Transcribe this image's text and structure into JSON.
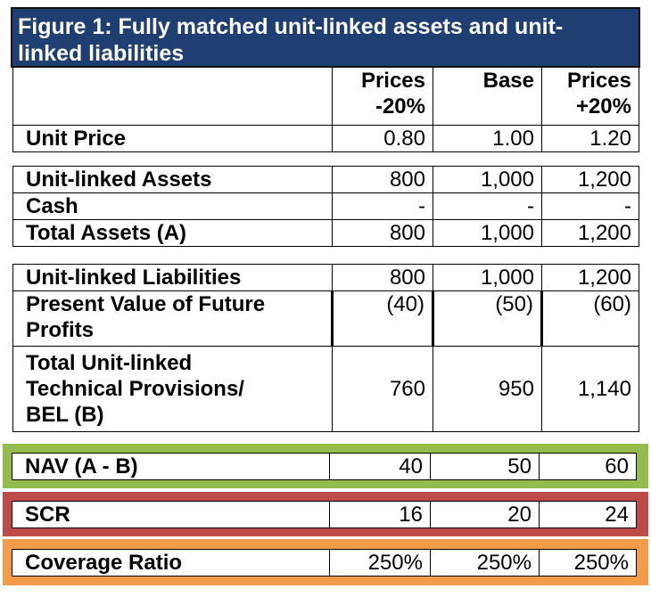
{
  "figure": {
    "title": "Figure 1: Fully matched unit-linked assets and unit-linked liabilities",
    "title_line1": "Figure 1: Fully matched unit-linked assets and unit-",
    "title_line2": "linked liabilities",
    "header_color": "#1f3f73"
  },
  "columns": [
    {
      "line1": "Prices",
      "line2": "-20%"
    },
    {
      "line1": "Base",
      "line2": ""
    },
    {
      "line1": "Prices",
      "line2": "+20%"
    }
  ],
  "rows": {
    "unit_price": {
      "label": "Unit Price",
      "values": [
        "0.80",
        "1.00",
        "1.20"
      ]
    },
    "unit_linked_assets": {
      "label": "Unit-linked Assets",
      "values": [
        "800",
        "1,000",
        "1,200"
      ]
    },
    "cash": {
      "label": "Cash",
      "values": [
        "-",
        "-",
        "-"
      ]
    },
    "total_assets": {
      "label": "Total Assets (A)",
      "values": [
        "800",
        "1,000",
        "1,200"
      ]
    },
    "unit_linked_liabilities": {
      "label": "Unit-linked Liabilities",
      "values": [
        "800",
        "1,000",
        "1,200"
      ]
    },
    "pvfp": {
      "label_line1": "Present Value of Future",
      "label_line2": "Profits",
      "values": [
        "(40)",
        "(50)",
        "(60)"
      ]
    },
    "tp_bel": {
      "label_line1": "Total Unit-linked",
      "label_line2": "Technical Provisions/",
      "label_line3": "BEL (B)",
      "values": [
        "760",
        "950",
        "1,140"
      ]
    },
    "nav": {
      "label": "NAV (A - B)",
      "values": [
        "40",
        "50",
        "60"
      ],
      "band_color": "#92bd4c"
    },
    "scr": {
      "label": "SCR",
      "values": [
        "16",
        "20",
        "24"
      ],
      "band_color": "#bf4b48"
    },
    "coverage": {
      "label": "Coverage Ratio",
      "values": [
        "250%",
        "250%",
        "250%"
      ],
      "band_color": "#f49b4a"
    }
  }
}
